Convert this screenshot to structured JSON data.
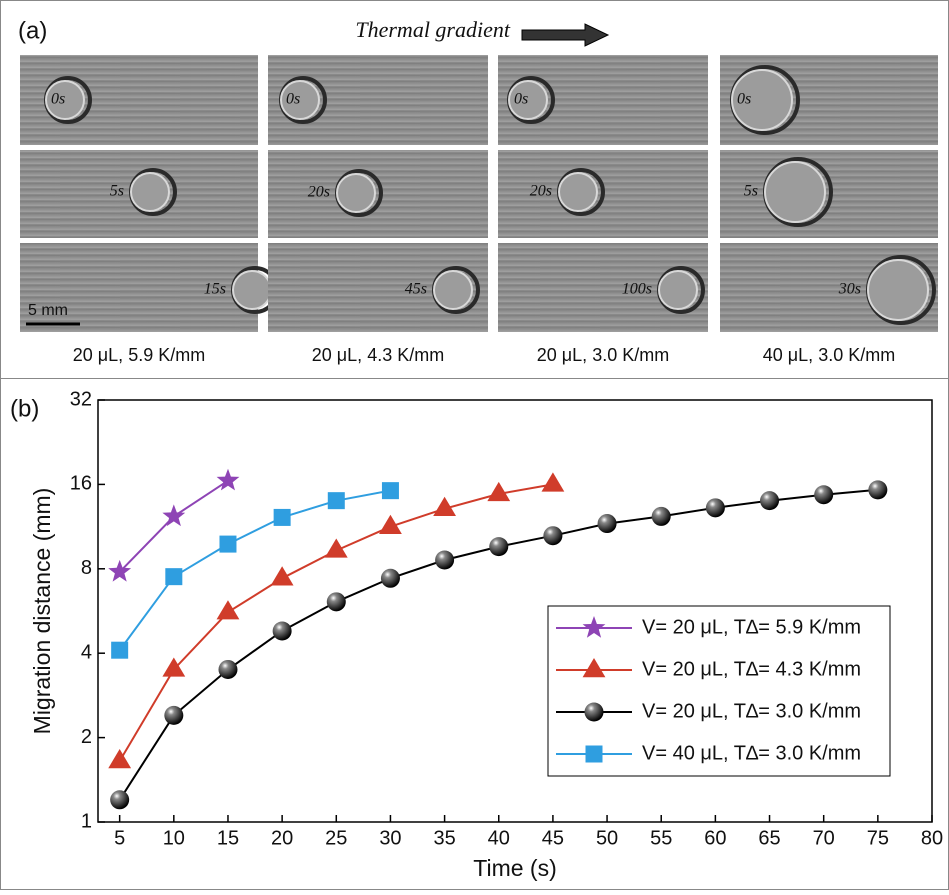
{
  "figure": {
    "panel_a": {
      "label": "(a)",
      "title": "Thermal gradient",
      "scale_bar": "5 mm",
      "columns": [
        {
          "caption": "20 μL, 5.9 K/mm",
          "frames": [
            "0s",
            "5s",
            "15s"
          ]
        },
        {
          "caption": "20 μL, 4.3 K/mm",
          "frames": [
            "0s",
            "20s",
            "45s"
          ]
        },
        {
          "caption": "20 μL, 3.0 K/mm",
          "frames": [
            "0s",
            "20s",
            "100s"
          ]
        },
        {
          "caption": "40 μL, 3.0 K/mm",
          "frames": [
            "0s",
            "5s",
            "30s"
          ]
        }
      ]
    },
    "chart_data": {
      "type": "line",
      "panel_label": "(b)",
      "x_label": "Time (s)",
      "y_label": "Migration distance (mm)",
      "xlim": [
        3,
        80
      ],
      "xticks": [
        5,
        10,
        15,
        20,
        25,
        30,
        35,
        40,
        45,
        50,
        55,
        60,
        65,
        70,
        75,
        80
      ],
      "ylim": [
        1,
        32
      ],
      "yticks": [
        1,
        2,
        4,
        8,
        16,
        32
      ],
      "y_scale": "log2",
      "series": [
        {
          "name": "V= 20 μL, T∆= 5.9 K/mm",
          "color": "#8e44b5",
          "marker": "star",
          "x": [
            5,
            10,
            15
          ],
          "values": [
            7.8,
            12.3,
            16.5
          ]
        },
        {
          "name": "V= 20 μL, T∆= 4.3 K/mm",
          "color": "#d03c2a",
          "marker": "triangle",
          "x": [
            5,
            10,
            15,
            20,
            25,
            30,
            35,
            40,
            45
          ],
          "values": [
            1.65,
            3.5,
            5.6,
            7.4,
            9.3,
            11.3,
            13.1,
            14.8,
            16.0
          ]
        },
        {
          "name": "V= 20 μL, T∆= 3.0 K/mm",
          "color": "#000000",
          "marker": "ball",
          "x": [
            5,
            10,
            15,
            20,
            25,
            30,
            35,
            40,
            45,
            50,
            55,
            60,
            65,
            70,
            75
          ],
          "values": [
            1.2,
            2.4,
            3.5,
            4.8,
            6.1,
            7.4,
            8.6,
            9.6,
            10.5,
            11.6,
            12.3,
            13.2,
            14.0,
            14.7,
            15.3
          ]
        },
        {
          "name": "V= 40 μL, T∆= 3.0 K/mm",
          "color": "#2f9ee0",
          "marker": "square",
          "x": [
            5,
            10,
            15,
            20,
            25,
            30
          ],
          "values": [
            4.1,
            7.5,
            9.8,
            12.2,
            14.0,
            15.2
          ]
        }
      ]
    }
  }
}
